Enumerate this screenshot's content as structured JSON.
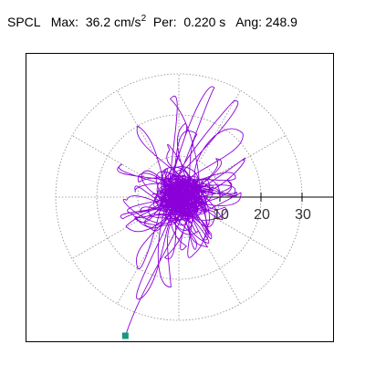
{
  "header": {
    "station": "SPCL",
    "max_label": "Max:",
    "max_value": "36.2 cm/s",
    "max_exp": "2",
    "per_label": "Per:",
    "per_value": "0.220 s",
    "ang_label": "Ang:",
    "ang_value": "248.9"
  },
  "colors": {
    "trace": "#8b00d9",
    "marker": "#159a7a",
    "grid": "#8a8a8a",
    "axis": "#000000"
  },
  "chart_data": {
    "type": "polar-orbit",
    "title": "",
    "radial_ticks": [
      10,
      20,
      30
    ],
    "radial_tick_labels": [
      "10",
      "20",
      "30"
    ],
    "rings": [
      10,
      20,
      30
    ],
    "grid_style": "dotted",
    "grid": true,
    "max_amplitude": 36.2,
    "max_angle_deg": 248.9,
    "end_marker": {
      "r": 36.2,
      "angle_deg": 248.9
    },
    "orbit_lobes": [
      {
        "r": 28,
        "angle_deg": 72
      },
      {
        "r": 27,
        "angle_deg": 60
      },
      {
        "r": 24,
        "angle_deg": 95
      },
      {
        "r": 22,
        "angle_deg": 45
      },
      {
        "r": 20,
        "angle_deg": 120
      },
      {
        "r": 18,
        "angle_deg": 30
      },
      {
        "r": 16,
        "angle_deg": 150
      },
      {
        "r": 14,
        "angle_deg": 5
      },
      {
        "r": 20,
        "angle_deg": 240
      },
      {
        "r": 26,
        "angle_deg": 250
      },
      {
        "r": 22,
        "angle_deg": 265
      },
      {
        "r": 14,
        "angle_deg": 300
      },
      {
        "r": 12,
        "angle_deg": 200
      },
      {
        "r": 18,
        "angle_deg": 85
      },
      {
        "r": 10,
        "angle_deg": 330
      }
    ]
  }
}
